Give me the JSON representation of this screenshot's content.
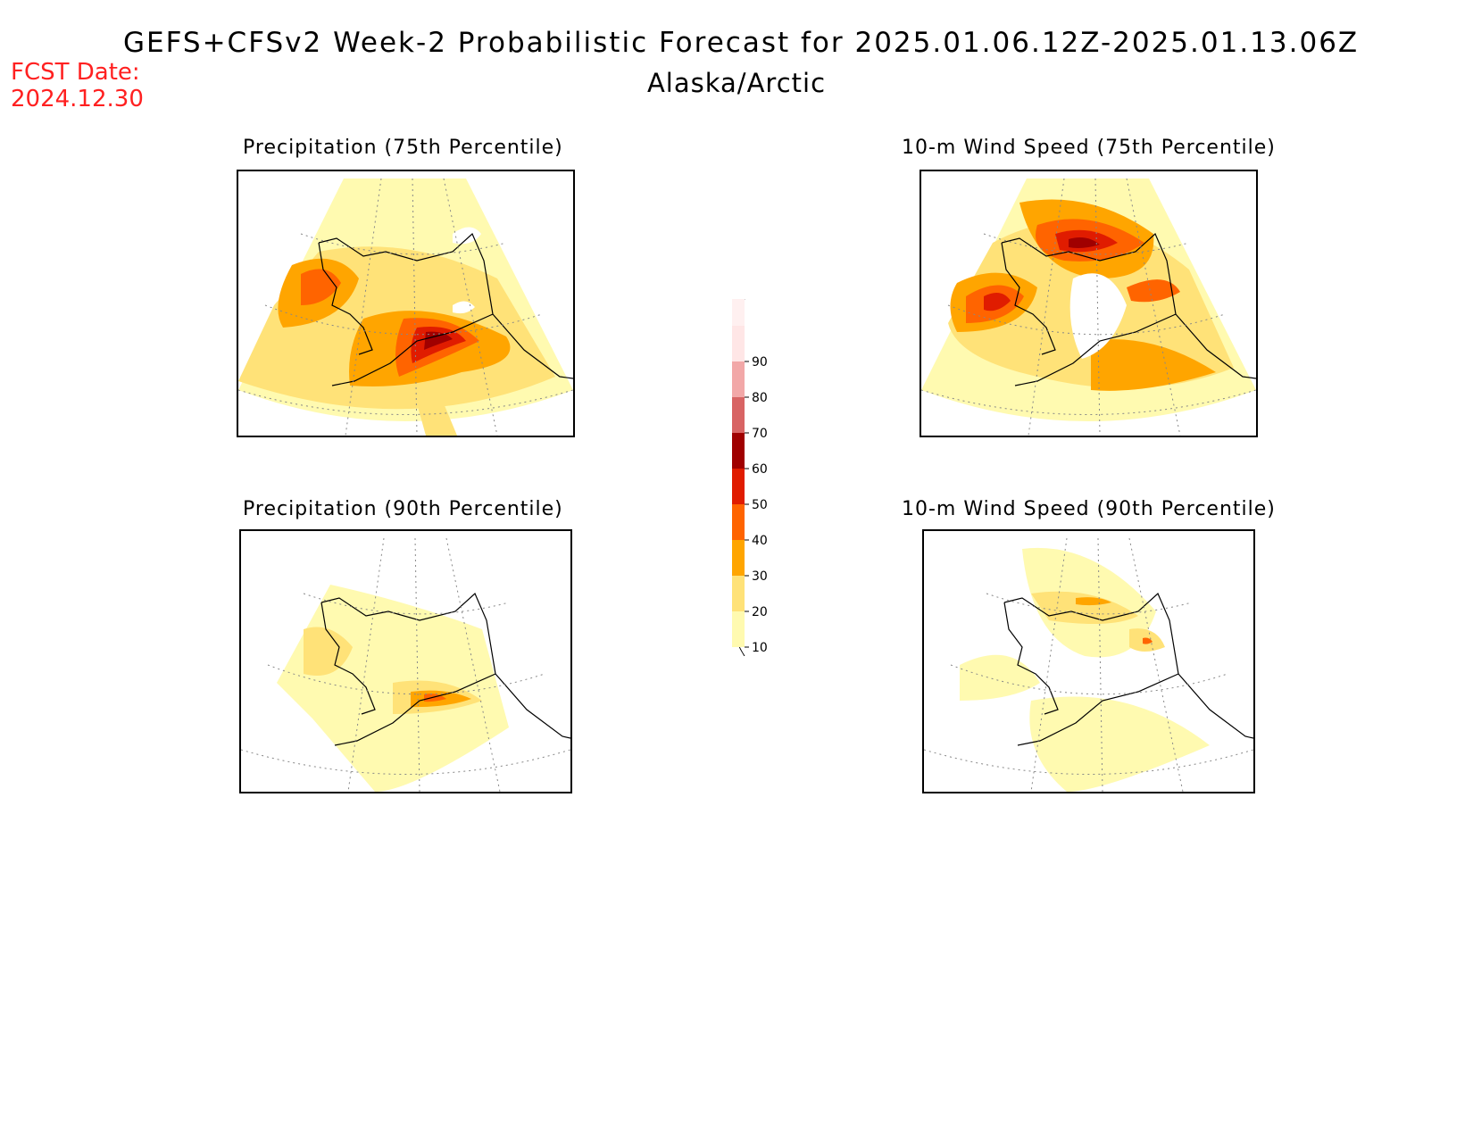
{
  "header": {
    "title": "GEFS+CFSv2 Week-2 Probabilistic Forecast for 2025.01.06.12Z-2025.01.13.06Z",
    "region": "Alaska/Arctic",
    "fcst_label": "FCST Date:",
    "fcst_date": "2024.12.30"
  },
  "panels": [
    {
      "title": "Precipitation (75th Percentile)",
      "level": "high"
    },
    {
      "title": "10-m Wind Speed (75th Percentile)",
      "level": "high"
    },
    {
      "title": "Precipitation (90th Percentile)",
      "level": "low"
    },
    {
      "title": "10-m Wind Speed (90th Percentile)",
      "level": "low"
    }
  ],
  "colorbar": {
    "labels": [
      "10",
      "20",
      "30",
      "40",
      "50",
      "60",
      "70",
      "80",
      "90"
    ],
    "colors": [
      "#fffab0",
      "#ffe278",
      "#ffa500",
      "#ff6400",
      "#e01c00",
      "#a00000",
      "#d86464",
      "#f2a8a8",
      "#ffe6e6"
    ]
  },
  "colors": {
    "fcst": "#ff2020",
    "c10": "#fffab0",
    "c20": "#ffe278",
    "c30": "#ffa500",
    "c40": "#ff6400",
    "c50": "#e01c00",
    "c60": "#a00000"
  }
}
